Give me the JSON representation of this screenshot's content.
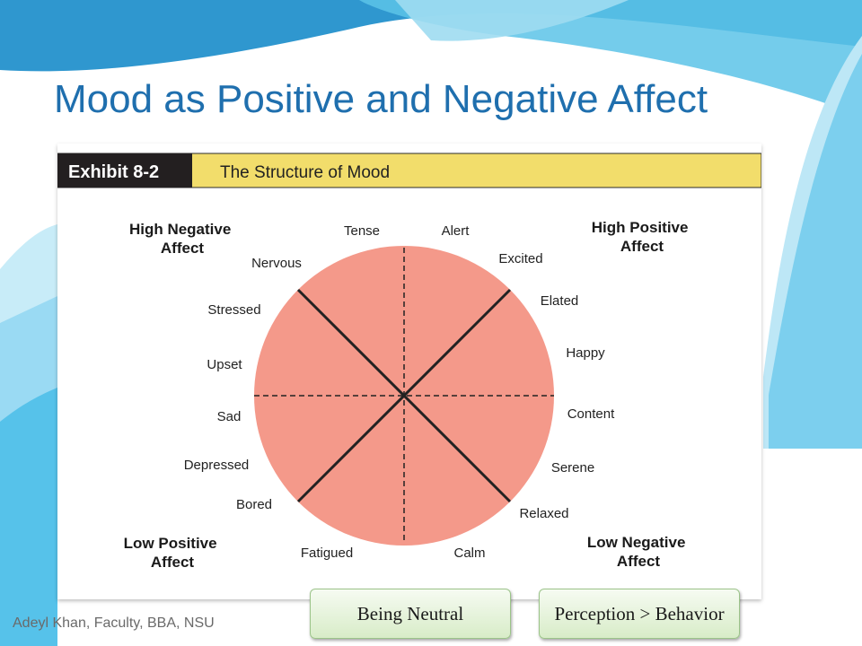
{
  "slide": {
    "title": "Mood as Positive and Negative Affect",
    "footer": "Adeyl Khan, Faculty, BBA, NSU"
  },
  "exhibit": {
    "number": "Exhibit 8-2",
    "heading": "The Structure of Mood",
    "quadrants": {
      "top_left": [
        "High Negative",
        "Affect"
      ],
      "top_right": [
        "High Positive",
        "Affect"
      ],
      "bottom_left": [
        "Low Positive",
        "Affect"
      ],
      "bottom_right": [
        "Low Negative",
        "Affect"
      ]
    },
    "moods": [
      "Tense",
      "Alert",
      "Excited",
      "Elated",
      "Happy",
      "Content",
      "Serene",
      "Relaxed",
      "Calm",
      "Fatigued",
      "Bored",
      "Depressed",
      "Sad",
      "Upset",
      "Stressed",
      "Nervous"
    ],
    "colors": {
      "circle": "#f4998a",
      "header_band": "#f2dd6b",
      "exhibit_label_bg": "#231f20"
    }
  },
  "buttons": {
    "neutral": "Being Neutral",
    "perception": "Perception > Behavior"
  },
  "colors": {
    "title": "#1f6fae",
    "button_border": "#9cc48a"
  }
}
